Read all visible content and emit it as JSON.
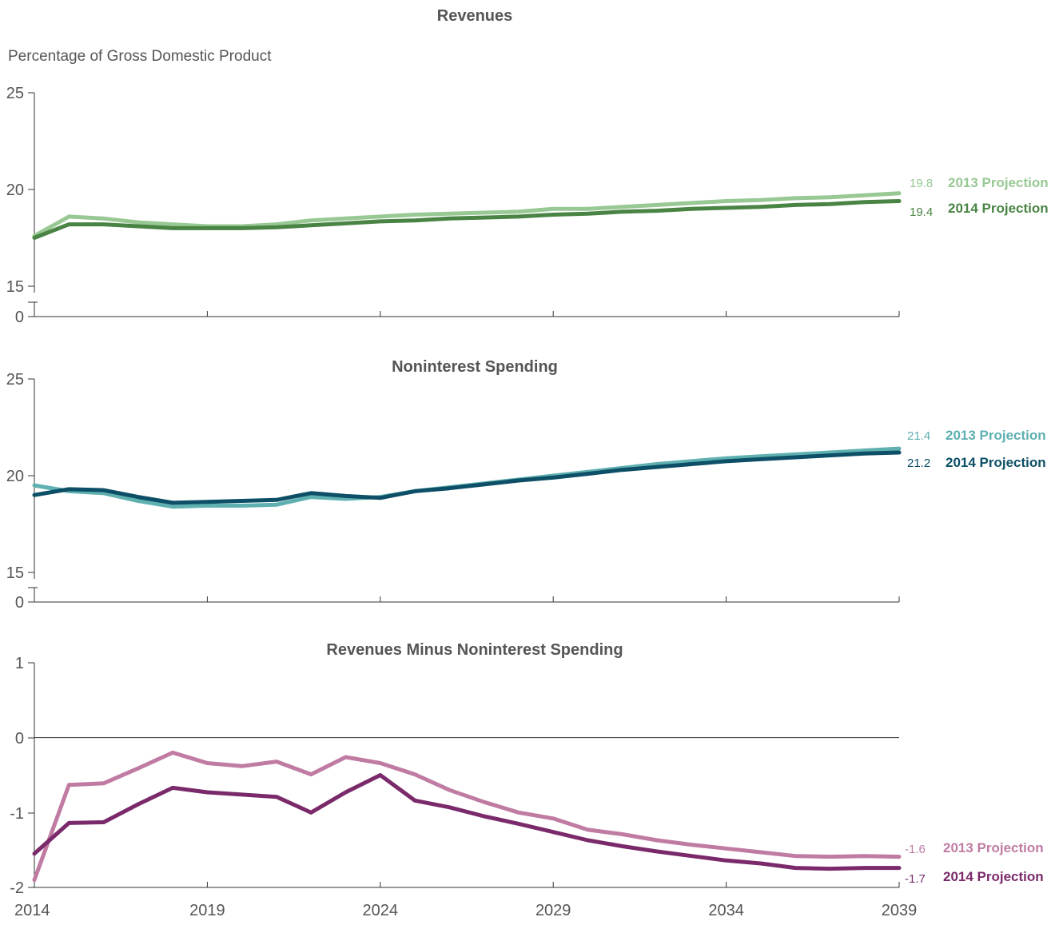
{
  "unit_label": "Percentage of Gross Domestic Product",
  "x_tick_labels": [
    "2014",
    "2019",
    "2024",
    "2029",
    "2034",
    "2039"
  ],
  "chart_data": [
    {
      "type": "line",
      "title": "Revenues",
      "ylabel": "Percentage of Gross Domestic Product",
      "ylim": [
        15,
        25
      ],
      "axis_break": true,
      "y_ticks": [
        "25",
        "20",
        "15",
        "0"
      ],
      "x": [
        2014,
        2015,
        2016,
        2017,
        2018,
        2019,
        2020,
        2021,
        2022,
        2023,
        2024,
        2025,
        2026,
        2027,
        2028,
        2029,
        2030,
        2031,
        2032,
        2033,
        2034,
        2035,
        2036,
        2037,
        2038,
        2039
      ],
      "series": [
        {
          "name": "2013 Projection",
          "color": "#98c894",
          "end_value": "19.8",
          "values": [
            17.6,
            18.6,
            18.5,
            18.3,
            18.2,
            18.1,
            18.1,
            18.2,
            18.4,
            18.5,
            18.6,
            18.7,
            18.75,
            18.8,
            18.85,
            19.0,
            19.0,
            19.1,
            19.2,
            19.3,
            19.4,
            19.45,
            19.55,
            19.6,
            19.7,
            19.8
          ]
        },
        {
          "name": "2014 Projection",
          "color": "#4a8444",
          "end_value": "19.4",
          "values": [
            17.5,
            18.2,
            18.2,
            18.1,
            18.0,
            18.0,
            18.0,
            18.05,
            18.15,
            18.25,
            18.35,
            18.4,
            18.5,
            18.55,
            18.6,
            18.7,
            18.75,
            18.85,
            18.9,
            19.0,
            19.05,
            19.1,
            19.2,
            19.25,
            19.35,
            19.4
          ]
        }
      ]
    },
    {
      "type": "line",
      "title": "Noninterest Spending",
      "ylim": [
        15,
        25
      ],
      "axis_break": true,
      "y_ticks": [
        "25",
        "20",
        "15",
        "0"
      ],
      "x": [
        2014,
        2015,
        2016,
        2017,
        2018,
        2019,
        2020,
        2021,
        2022,
        2023,
        2024,
        2025,
        2026,
        2027,
        2028,
        2029,
        2030,
        2031,
        2032,
        2033,
        2034,
        2035,
        2036,
        2037,
        2038,
        2039
      ],
      "series": [
        {
          "name": "2013 Projection",
          "color": "#5fb0b0",
          "end_value": "21.4",
          "values": [
            19.5,
            19.2,
            19.1,
            18.7,
            18.4,
            18.45,
            18.45,
            18.5,
            18.9,
            18.8,
            18.9,
            19.2,
            19.4,
            19.6,
            19.8,
            20.0,
            20.2,
            20.4,
            20.6,
            20.75,
            20.9,
            21.0,
            21.1,
            21.2,
            21.3,
            21.4
          ]
        },
        {
          "name": "2014 Projection",
          "color": "#0c4f66",
          "end_value": "21.2",
          "values": [
            19.0,
            19.3,
            19.25,
            18.9,
            18.6,
            18.65,
            18.7,
            18.75,
            19.1,
            18.95,
            18.85,
            19.2,
            19.35,
            19.55,
            19.75,
            19.9,
            20.1,
            20.3,
            20.45,
            20.6,
            20.75,
            20.85,
            20.95,
            21.05,
            21.15,
            21.2
          ]
        }
      ]
    },
    {
      "type": "line",
      "title": "Revenues Minus Noninterest Spending",
      "ylim": [
        -2,
        1
      ],
      "y_ticks": [
        "1",
        "0",
        "-1",
        "-2"
      ],
      "x": [
        2014,
        2015,
        2016,
        2017,
        2018,
        2019,
        2020,
        2021,
        2022,
        2023,
        2024,
        2025,
        2026,
        2027,
        2028,
        2029,
        2030,
        2031,
        2032,
        2033,
        2034,
        2035,
        2036,
        2037,
        2038,
        2039
      ],
      "series": [
        {
          "name": "2013 Projection",
          "color": "#c07ba3",
          "end_value": "-1.6",
          "values": [
            -1.9,
            -0.63,
            -0.61,
            -0.41,
            -0.2,
            -0.34,
            -0.38,
            -0.32,
            -0.49,
            -0.26,
            -0.34,
            -0.49,
            -0.7,
            -0.86,
            -1.0,
            -1.08,
            -1.23,
            -1.29,
            -1.37,
            -1.43,
            -1.48,
            -1.53,
            -1.58,
            -1.59,
            -1.58,
            -1.59
          ]
        },
        {
          "name": "2014 Projection",
          "color": "#7a2a6a",
          "end_value": "-1.7",
          "values": [
            -1.55,
            -1.14,
            -1.13,
            -0.89,
            -0.67,
            -0.73,
            -0.76,
            -0.79,
            -1.0,
            -0.73,
            -0.5,
            -0.84,
            -0.93,
            -1.05,
            -1.15,
            -1.26,
            -1.37,
            -1.45,
            -1.52,
            -1.58,
            -1.64,
            -1.68,
            -1.74,
            -1.75,
            -1.74,
            -1.74
          ]
        }
      ]
    }
  ]
}
